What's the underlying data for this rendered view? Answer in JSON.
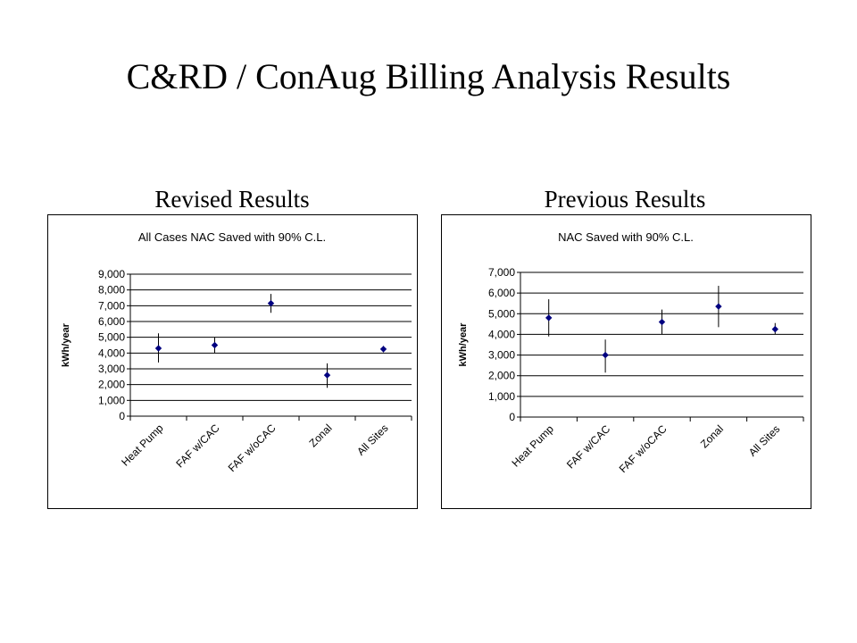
{
  "slide": {
    "title": "C&RD / ConAug Billing Analysis Results",
    "left_caption": "Revised Results",
    "right_caption": "Previous Results"
  },
  "colors": {
    "marker": "#000080",
    "grid": "#000000",
    "background": "#ffffff"
  },
  "chart_data": [
    {
      "type": "scatter",
      "title": "All Cases NAC Saved with 90% C.L.",
      "ylabel": "kWh/year",
      "xlabel": "",
      "categories": [
        "Heat Pump",
        "FAF w/CAC",
        "FAF w/oCAC",
        "Zonal",
        "All Sites"
      ],
      "values": [
        4300,
        4500,
        7150,
        2600,
        4250
      ],
      "error_low": [
        3400,
        4000,
        6550,
        1800,
        4050
      ],
      "error_high": [
        5250,
        5000,
        7750,
        3350,
        4450
      ],
      "ylim": [
        0,
        9000
      ],
      "yticks": [
        0,
        1000,
        2000,
        3000,
        4000,
        5000,
        6000,
        7000,
        8000,
        9000
      ],
      "ytick_labels": [
        "0",
        "1,000",
        "2,000",
        "3,000",
        "4,000",
        "5,000",
        "6,000",
        "7,000",
        "8,000",
        "9,000"
      ],
      "grid": true,
      "legend": "none"
    },
    {
      "type": "scatter",
      "title": "NAC Saved with 90% C.L.",
      "ylabel": "kWh/year",
      "xlabel": "",
      "categories": [
        "Heat Pump",
        "FAF w/CAC",
        "FAF w/oCAC",
        "Zonal",
        "All Sites"
      ],
      "values": [
        4800,
        3000,
        4600,
        5350,
        4250
      ],
      "error_low": [
        3900,
        2150,
        4000,
        4350,
        4000
      ],
      "error_high": [
        5700,
        3750,
        5200,
        6350,
        4550
      ],
      "ylim": [
        0,
        7000
      ],
      "yticks": [
        0,
        1000,
        2000,
        3000,
        4000,
        5000,
        6000,
        7000
      ],
      "ytick_labels": [
        "0",
        "1,000",
        "2,000",
        "3,000",
        "4,000",
        "5,000",
        "6,000",
        "7,000"
      ],
      "grid": true,
      "legend": "none"
    }
  ]
}
